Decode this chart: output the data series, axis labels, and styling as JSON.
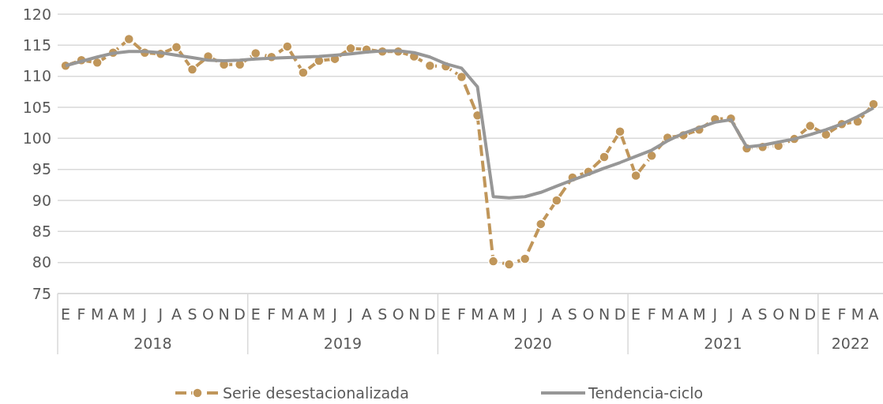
{
  "chart_data": {
    "type": "line",
    "categories": [
      "E",
      "F",
      "M",
      "A",
      "M",
      "J",
      "J",
      "A",
      "S",
      "O",
      "N",
      "D",
      "E",
      "F",
      "M",
      "A",
      "M",
      "J",
      "J",
      "A",
      "S",
      "O",
      "N",
      "D",
      "E",
      "F",
      "M",
      "A",
      "M",
      "J",
      "J",
      "A",
      "S",
      "O",
      "N",
      "D",
      "E",
      "F",
      "M",
      "A",
      "M",
      "J",
      "J",
      "A",
      "S",
      "O",
      "N",
      "D",
      "E",
      "F",
      "M",
      "A"
    ],
    "annotations": [
      "2018",
      "2019",
      "2020",
      "2021",
      "2022"
    ],
    "series": [
      {
        "name": "Serie desestacionalizada",
        "color": "#c0965a",
        "marker": "circle",
        "line_style": "dashed",
        "values": [
          111.7,
          112.6,
          112.2,
          113.8,
          116.0,
          113.8,
          113.6,
          114.7,
          111.1,
          113.2,
          111.9,
          111.9,
          113.7,
          113.1,
          114.8,
          110.6,
          112.5,
          112.8,
          114.5,
          114.3,
          114.0,
          114.0,
          113.2,
          111.7,
          111.6,
          109.9,
          103.7,
          80.2,
          79.7,
          80.6,
          86.2,
          90.0,
          93.7,
          94.6,
          97.0,
          101.1,
          94.0,
          97.2,
          100.1,
          100.5,
          101.4,
          103.1,
          103.2,
          98.4,
          98.6,
          98.8,
          99.9,
          102.0,
          100.6,
          102.3,
          102.7,
          105.5
        ]
      },
      {
        "name": "Tendencia-ciclo",
        "color": "#979797",
        "marker": "none",
        "line_style": "solid",
        "values": [
          111.7,
          112.4,
          113.1,
          113.7,
          114.0,
          114.0,
          113.8,
          113.4,
          113.0,
          112.6,
          112.5,
          112.6,
          112.8,
          112.9,
          113.0,
          113.1,
          113.2,
          113.4,
          113.6,
          113.9,
          114.1,
          114.1,
          113.8,
          113.1,
          112.0,
          111.3,
          108.3,
          90.6,
          90.4,
          90.6,
          91.3,
          92.3,
          93.3,
          94.2,
          95.2,
          96.1,
          97.1,
          98.1,
          99.6,
          100.8,
          101.7,
          102.6,
          103.0,
          98.6,
          98.9,
          99.4,
          99.9,
          100.6,
          101.4,
          102.3,
          103.5,
          104.9
        ]
      }
    ],
    "ylim": [
      75,
      120
    ],
    "yticks": [
      75,
      80,
      85,
      90,
      95,
      100,
      105,
      110,
      115,
      120
    ],
    "grid": "y",
    "legend": "bottom"
  }
}
